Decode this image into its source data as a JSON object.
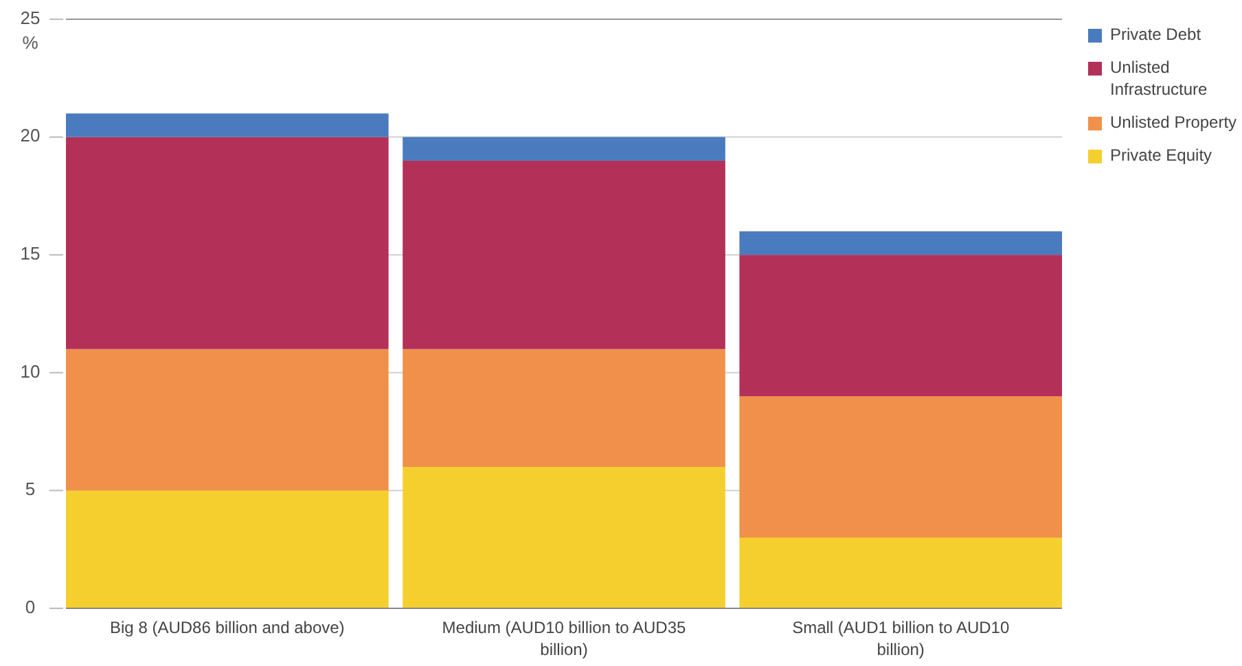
{
  "chart_data": {
    "type": "bar",
    "stacked": true,
    "ylabel": "%",
    "categories": [
      "Big 8 (AUD86 billion and above)",
      "Medium (AUD10 billion to AUD35 billion)",
      "Small (AUD1 billion to AUD10 billion)"
    ],
    "series": [
      {
        "name": "Private Equity",
        "color": "#f5cf2e",
        "values": [
          5,
          6,
          3
        ]
      },
      {
        "name": "Unlisted Property",
        "color": "#f0904a",
        "values": [
          6,
          5,
          6
        ]
      },
      {
        "name": "Unlisted Infrastructure",
        "color": "#b33058",
        "values": [
          9,
          8,
          6
        ]
      },
      {
        "name": "Private Debt",
        "color": "#4a7bbf",
        "values": [
          1,
          1,
          1
        ]
      }
    ],
    "ylim": [
      0,
      25
    ],
    "yticks": [
      0,
      5,
      10,
      15,
      20,
      25
    ],
    "grid": "y",
    "legend": "right"
  }
}
